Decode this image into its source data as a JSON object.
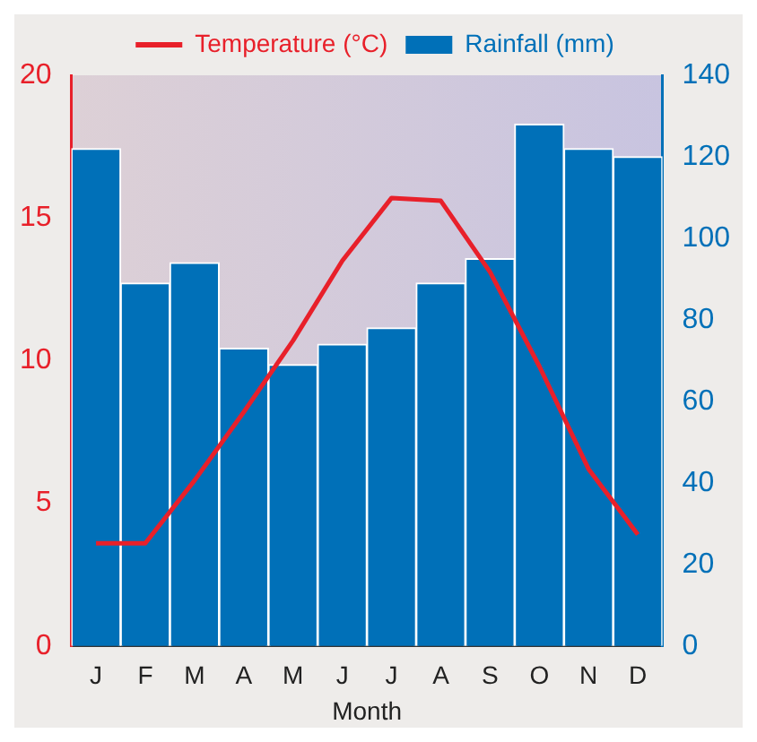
{
  "chart_data": {
    "type": "bar",
    "xlabel": "Month",
    "categories": [
      "J",
      "F",
      "M",
      "A",
      "M",
      "J",
      "J",
      "A",
      "S",
      "O",
      "N",
      "D"
    ],
    "series": [
      {
        "name": "Temperature (°C)",
        "type": "line",
        "color": "#e8202a",
        "values": [
          3.6,
          3.6,
          5.8,
          8.2,
          10.7,
          13.5,
          15.7,
          15.6,
          13.1,
          9.8,
          6.2,
          3.9
        ]
      },
      {
        "name": "Rainfall (mm)",
        "axis": "y2",
        "color": "#0070b8",
        "values": [
          122,
          89,
          94,
          73,
          69,
          74,
          78,
          89,
          95,
          128,
          122,
          120
        ]
      }
    ],
    "ylim": [
      0,
      20
    ],
    "yticks": [
      0,
      5,
      10,
      15,
      20
    ],
    "y2lim": [
      0,
      140
    ],
    "y2ticks": [
      0,
      20,
      40,
      60,
      80,
      100,
      120,
      140
    ],
    "legend": "top",
    "grid": false,
    "marker": "none",
    "line_style": "solid"
  }
}
